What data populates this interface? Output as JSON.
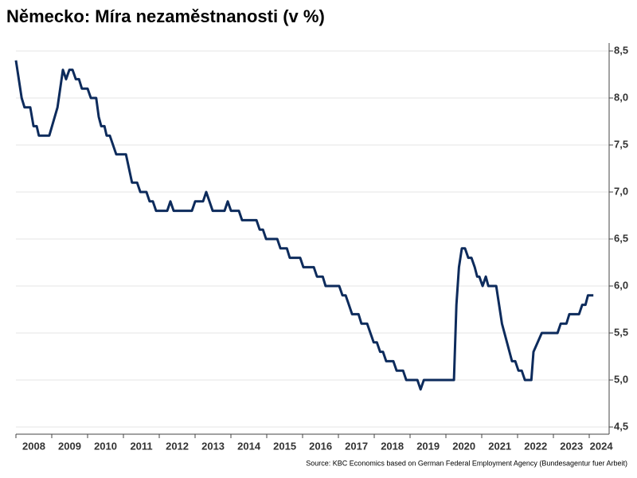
{
  "chart_data": {
    "type": "line",
    "title": "Německo: Míra nezaměstnanosti (v %)",
    "source": "Source: KBC Economics based on German Federal Employment Agency (Bundesagentur fuer Arbeit)",
    "color": "#0d2b5c",
    "grid": true,
    "x": [
      2008.0,
      2008.16,
      2008.24,
      2008.4,
      2008.49,
      2008.58,
      2008.64,
      2008.93,
      2009.16,
      2009.31,
      2009.4,
      2009.49,
      2009.58,
      2009.67,
      2009.76,
      2009.84,
      2010.0,
      2010.09,
      2010.24,
      2010.31,
      2010.38,
      2010.47,
      2010.53,
      2010.62,
      2010.8,
      2011.07,
      2011.24,
      2011.38,
      2011.47,
      2011.64,
      2011.73,
      2011.82,
      2011.91,
      2012.22,
      2012.31,
      2012.4,
      2012.91,
      2013.0,
      2013.22,
      2013.31,
      2013.49,
      2013.82,
      2013.91,
      2014.0,
      2014.22,
      2014.31,
      2014.71,
      2014.8,
      2014.89,
      2014.98,
      2015.29,
      2015.38,
      2015.56,
      2015.64,
      2015.93,
      2016.02,
      2016.31,
      2016.4,
      2016.56,
      2016.64,
      2017.02,
      2017.11,
      2017.2,
      2017.29,
      2017.38,
      2017.56,
      2017.64,
      2017.8,
      2017.89,
      2017.98,
      2018.07,
      2018.16,
      2018.24,
      2018.33,
      2018.53,
      2018.62,
      2018.8,
      2018.89,
      2019.2,
      2019.29,
      2019.38,
      2020.22,
      2020.29,
      2020.36,
      2020.44,
      2020.53,
      2020.62,
      2020.71,
      2020.8,
      2020.87,
      2020.93,
      2021.02,
      2021.11,
      2021.18,
      2021.4,
      2021.56,
      2021.84,
      2021.93,
      2022.02,
      2022.11,
      2022.2,
      2022.38,
      2022.44,
      2022.67,
      2023.11,
      2023.2,
      2023.36,
      2023.44,
      2023.71,
      2023.8,
      2023.89,
      2023.96,
      2024.11
    ],
    "values": [
      8.4,
      8.0,
      7.9,
      7.9,
      7.7,
      7.7,
      7.6,
      7.6,
      7.9,
      8.3,
      8.2,
      8.3,
      8.3,
      8.2,
      8.2,
      8.1,
      8.1,
      8.0,
      8.0,
      7.8,
      7.7,
      7.7,
      7.6,
      7.6,
      7.4,
      7.4,
      7.1,
      7.1,
      7.0,
      7.0,
      6.9,
      6.9,
      6.8,
      6.8,
      6.9,
      6.8,
      6.8,
      6.9,
      6.9,
      7.0,
      6.8,
      6.8,
      6.9,
      6.8,
      6.8,
      6.7,
      6.7,
      6.6,
      6.6,
      6.5,
      6.5,
      6.4,
      6.4,
      6.3,
      6.3,
      6.2,
      6.2,
      6.1,
      6.1,
      6.0,
      6.0,
      5.9,
      5.9,
      5.8,
      5.7,
      5.7,
      5.6,
      5.6,
      5.5,
      5.4,
      5.4,
      5.3,
      5.3,
      5.2,
      5.2,
      5.1,
      5.1,
      5.0,
      5.0,
      4.9,
      5.0,
      5.0,
      5.8,
      6.2,
      6.4,
      6.4,
      6.3,
      6.3,
      6.2,
      6.1,
      6.1,
      6.0,
      6.1,
      6.0,
      6.0,
      5.6,
      5.2,
      5.2,
      5.1,
      5.1,
      5.0,
      5.0,
      5.3,
      5.5,
      5.5,
      5.6,
      5.6,
      5.7,
      5.7,
      5.8,
      5.8,
      5.9,
      5.9
    ],
    "xlim": [
      2008,
      2024.55
    ],
    "xticks": [
      {
        "value": 2008.5,
        "label": "2008"
      },
      {
        "value": 2009.5,
        "label": "2009"
      },
      {
        "value": 2010.5,
        "label": "2010"
      },
      {
        "value": 2011.5,
        "label": "2011"
      },
      {
        "value": 2012.5,
        "label": "2012"
      },
      {
        "value": 2013.5,
        "label": "2013"
      },
      {
        "value": 2014.5,
        "label": "2014"
      },
      {
        "value": 2015.5,
        "label": "2015"
      },
      {
        "value": 2016.5,
        "label": "2016"
      },
      {
        "value": 2017.5,
        "label": "2017"
      },
      {
        "value": 2018.5,
        "label": "2018"
      },
      {
        "value": 2019.5,
        "label": "2019"
      },
      {
        "value": 2020.5,
        "label": "2020"
      },
      {
        "value": 2021.5,
        "label": "2021"
      },
      {
        "value": 2022.5,
        "label": "2022"
      },
      {
        "value": 2023.5,
        "label": "2023"
      },
      {
        "value": 2024.33,
        "label": "2024"
      }
    ],
    "ylim": [
      4.5,
      8.5
    ],
    "yticks": [
      {
        "value": 4.5,
        "label": "4,5"
      },
      {
        "value": 5.0,
        "label": "5,0"
      },
      {
        "value": 5.5,
        "label": "5,5"
      },
      {
        "value": 6.0,
        "label": "6,0"
      },
      {
        "value": 6.5,
        "label": "6,5"
      },
      {
        "value": 7.0,
        "label": "7,0"
      },
      {
        "value": 7.5,
        "label": "7,5"
      },
      {
        "value": 8.0,
        "label": "8,0"
      },
      {
        "value": 8.5,
        "label": "8,5"
      }
    ]
  }
}
